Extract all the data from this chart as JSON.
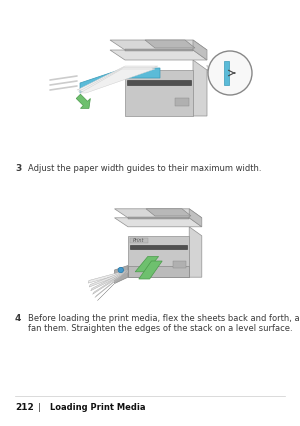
{
  "page_bg": "#ffffff",
  "step3_number": "3",
  "step3_text": "Adjust the paper width guides to their maximum width.",
  "step4_number": "4",
  "step4_text": "Before loading the print media, flex the sheets back and forth, and then\nfan them. Straighten the edges of the stack on a level surface.",
  "footer_page": "212",
  "footer_sep": "|",
  "footer_title": "Loading Print Media",
  "text_color": "#3a3a3a",
  "footer_bold_color": "#111111",
  "font_size_step_num": 6.5,
  "font_size_step_text": 6.0,
  "font_size_footer_num": 6.5,
  "font_size_footer_text": 6.0
}
